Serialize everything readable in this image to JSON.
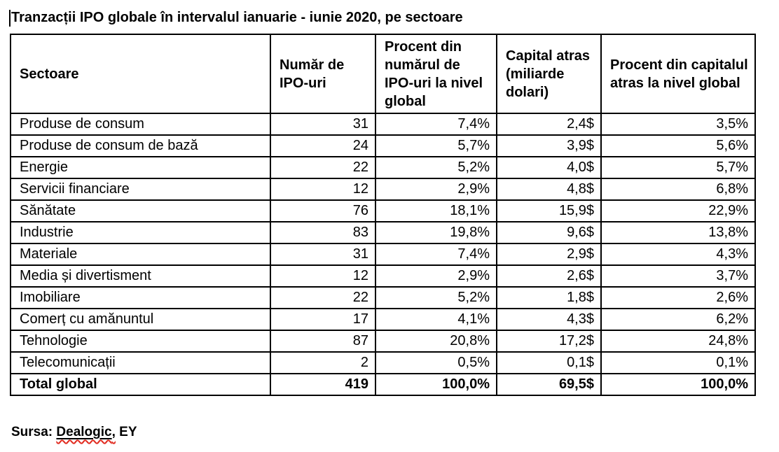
{
  "title": "Tranzacții IPO globale în intervalul ianuarie - iunie 2020, pe sectoare",
  "table": {
    "columns": [
      "Sectoare",
      "Număr de IPO-uri",
      "Procent din numărul de IPO-uri la nivel global",
      "Capital atras (miliarde dolari)",
      "Procent din capitalul atras la nivel global"
    ],
    "rows": [
      [
        "Produse de consum",
        "31",
        "7,4%",
        "2,4$",
        "3,5%"
      ],
      [
        "Produse de consum de bază",
        "24",
        "5,7%",
        "3,9$",
        "5,6%"
      ],
      [
        "Energie",
        "22",
        "5,2%",
        "4,0$",
        "5,7%"
      ],
      [
        "Servicii financiare",
        "12",
        "2,9%",
        "4,8$",
        "6,8%"
      ],
      [
        "Sănătate",
        "76",
        "18,1%",
        "15,9$",
        "22,9%"
      ],
      [
        "Industrie",
        "83",
        "19,8%",
        "9,6$",
        "13,8%"
      ],
      [
        "Materiale",
        "31",
        "7,4%",
        "2,9$",
        "4,3%"
      ],
      [
        "Media și divertisment",
        "12",
        "2,9%",
        "2,6$",
        "3,7%"
      ],
      [
        "Imobiliare",
        "22",
        "5,2%",
        "1,8$",
        "2,6%"
      ],
      [
        "Comerț cu amănuntul",
        "17",
        "4,1%",
        "4,3$",
        "6,2%"
      ],
      [
        "Tehnologie",
        "87",
        "20,8%",
        "17,2$",
        "24,8%"
      ],
      [
        "Telecomunicații",
        "2",
        "0,5%",
        "0,1$",
        "0,1%"
      ]
    ],
    "total_row": [
      "Total global",
      "419",
      "100,0%",
      "69,5$",
      "100,0%"
    ]
  },
  "footer": {
    "prefix": "Sursa: ",
    "source": "Dealogic",
    "comma": ",",
    "rest": " EY"
  },
  "colors": {
    "text": "#000000",
    "table_border": "#000000",
    "spellcheck_underline": "#e02b20"
  }
}
